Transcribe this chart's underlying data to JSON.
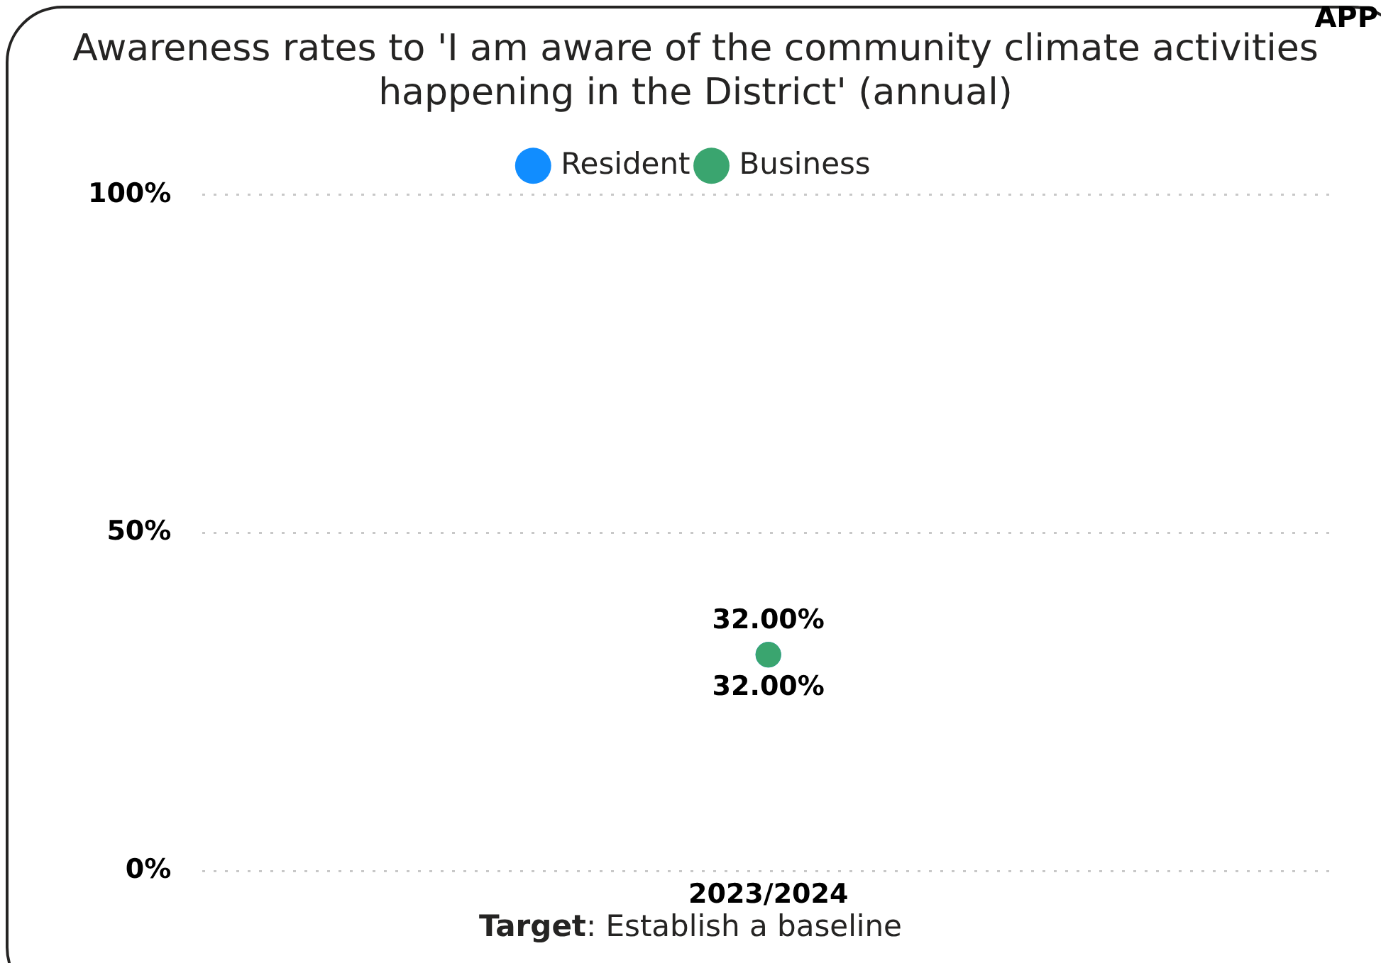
{
  "chart_data": {
    "type": "scatter",
    "title": "Awareness rates to 'I am aware of the community climate activities happening in the District' (annual)",
    "categories": [
      "2023/2024"
    ],
    "series": [
      {
        "name": "Resident",
        "color": "#118dff",
        "values": [
          32
        ],
        "value_labels": [
          "32.00%"
        ]
      },
      {
        "name": "Business",
        "color": "#3aa56f",
        "values": [
          32
        ],
        "value_labels": [
          "32.00%"
        ]
      }
    ],
    "ylim": [
      0,
      100
    ],
    "yticks": [
      {
        "value": 0,
        "label": "0%"
      },
      {
        "value": 50,
        "label": "50%"
      },
      {
        "value": 100,
        "label": "100%"
      }
    ],
    "grid": "y",
    "legend": "top",
    "marker": "circle",
    "annotations": [
      "APP",
      "Target: Establish a baseline"
    ]
  }
}
